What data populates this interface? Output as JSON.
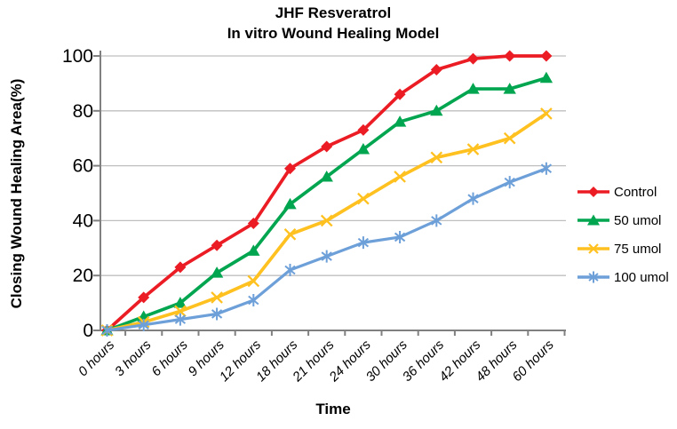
{
  "chart_data": {
    "type": "line",
    "title": "JHF Resveratrol",
    "subtitle": "In vitro Wound Healing Model",
    "xlabel": "Time",
    "ylabel": "Closing Wound Healing Area(%)",
    "categories": [
      "0 hours",
      "3 hours",
      "6 hours",
      "9 hours",
      "12 hours",
      "18 hours",
      "21 hours",
      "24 hours",
      "30 hours",
      "36 hours",
      "42 hours",
      "48 hours",
      "60 hours"
    ],
    "series": [
      {
        "name": "Control",
        "marker": "diamond",
        "color": "#EB1C24",
        "values": [
          0,
          12,
          23,
          31,
          39,
          59,
          67,
          73,
          86,
          95,
          99,
          100,
          100
        ]
      },
      {
        "name": "50 umol",
        "marker": "triangle",
        "color": "#00A550",
        "values": [
          0,
          5,
          10,
          21,
          29,
          46,
          56,
          66,
          76,
          80,
          88,
          88,
          92
        ]
      },
      {
        "name": "75 umol",
        "marker": "x",
        "color": "#FFC120",
        "values": [
          0,
          3,
          7,
          12,
          18,
          35,
          40,
          48,
          56,
          63,
          66,
          70,
          79
        ]
      },
      {
        "name": "100 umol",
        "marker": "asterisk",
        "color": "#6D9FD8",
        "values": [
          0,
          2,
          4,
          6,
          11,
          22,
          27,
          32,
          34,
          40,
          48,
          54,
          59
        ]
      }
    ],
    "ylim": [
      0,
      100
    ],
    "yticks": [
      0,
      20,
      40,
      60,
      80,
      100
    ],
    "grid": true,
    "legend_position": "right",
    "axis_color": "#808080",
    "grid_color": "#BFBFBF",
    "text_color": "#000000",
    "background": "#FFFFFF"
  }
}
